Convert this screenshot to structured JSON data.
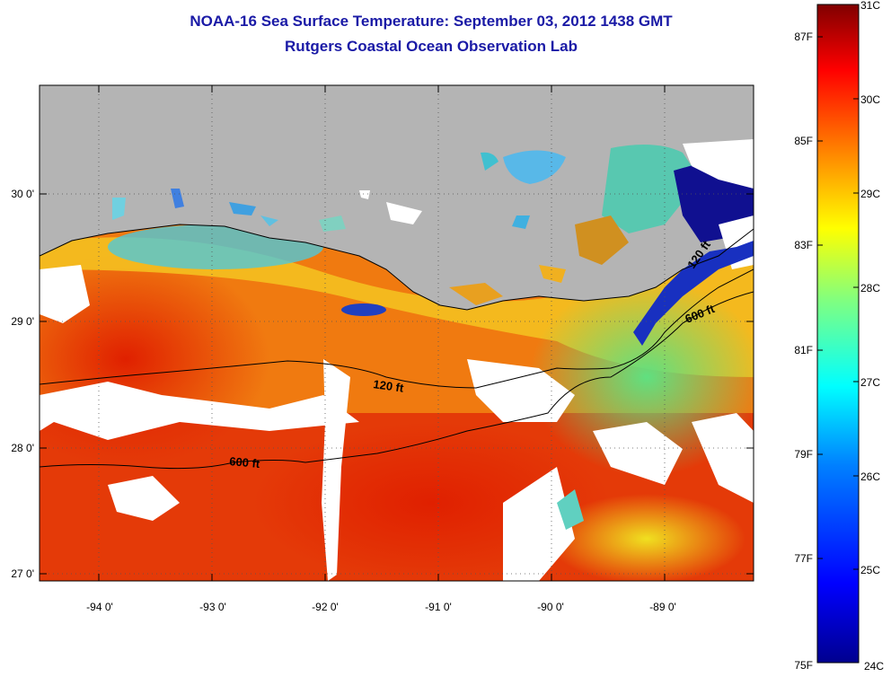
{
  "header": {
    "title": "NOAA-16 Sea Surface Temperature:  September 03, 2012 1438 GMT",
    "subtitle": "Rutgers Coastal Ocean Observation Lab"
  },
  "map": {
    "lon_labels": [
      "-94 0'",
      "-93 0'",
      "-92 0'",
      "-91 0'",
      "-90 0'",
      "-89 0'"
    ],
    "lon_values": [
      -94,
      -93,
      -92,
      -91,
      -90,
      -89
    ],
    "lat_labels": [
      "27 0'",
      "28 0'",
      "29 0'",
      "30 0'"
    ],
    "lat_values": [
      27,
      28,
      29,
      30
    ],
    "lon_range": [
      -94.45,
      -88.3
    ],
    "lat_range": [
      26.95,
      30.85
    ],
    "contours": [
      {
        "label": "120 ft"
      },
      {
        "label": "600 ft"
      },
      {
        "label": "600 ft"
      },
      {
        "label": "120 ft"
      }
    ],
    "land_color": "#b4b4b4",
    "cloud_color": "#ffffff"
  },
  "colorbar": {
    "celsius_labels": [
      "31C",
      "30C",
      "29C",
      "28C",
      "27C",
      "26C",
      "25C",
      "24C"
    ],
    "fahrenheit_labels": [
      "87F",
      "85F",
      "83F",
      "81F",
      "79F",
      "77F",
      "75F"
    ],
    "celsius_range": [
      24,
      31
    ],
    "colors": [
      "#00008f",
      "#0000ff",
      "#0080ff",
      "#00ffff",
      "#80ff80",
      "#ffff00",
      "#ff8000",
      "#ff0000",
      "#800000"
    ]
  }
}
